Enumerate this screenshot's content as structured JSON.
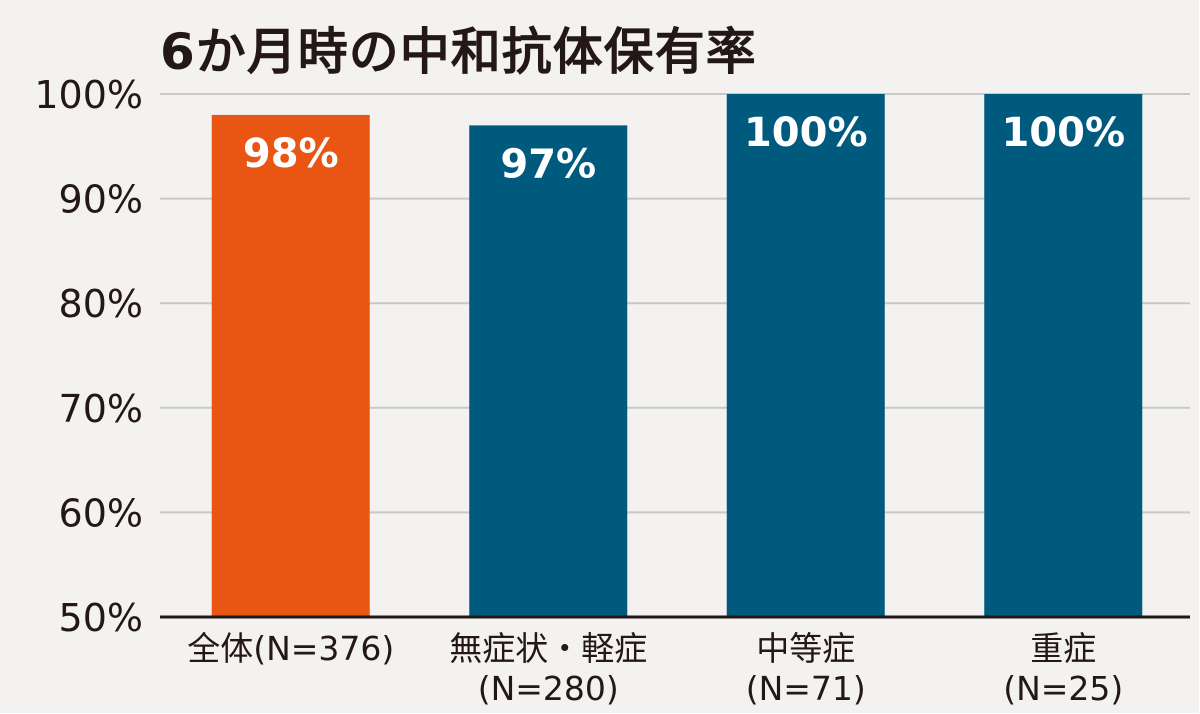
{
  "chart_data": {
    "type": "bar",
    "title": "6か月時の中和抗体保有率",
    "categories": [
      "全体(N=376)",
      "無症状・軽症(N=280)",
      "中等症(N=71)",
      "重症(N=25)"
    ],
    "category_lines": [
      [
        "全体(N=376)"
      ],
      [
        "無症状・軽症",
        "(N=280)"
      ],
      [
        "中等症",
        "(N=71)"
      ],
      [
        "重症",
        "(N=25)"
      ]
    ],
    "values": [
      98,
      97,
      100,
      100
    ],
    "data_labels": [
      "98%",
      "97%",
      "100%",
      "100%"
    ],
    "ylim": [
      50,
      100
    ],
    "yticks": [
      50,
      60,
      70,
      80,
      90,
      100
    ],
    "ytick_labels": [
      "50%",
      "60%",
      "70%",
      "80%",
      "90%",
      "100%"
    ],
    "xlabel": "",
    "ylabel": "",
    "grid": true,
    "bar_colors": [
      "#e95513",
      "#005a7e",
      "#005a7e",
      "#005a7e"
    ]
  }
}
